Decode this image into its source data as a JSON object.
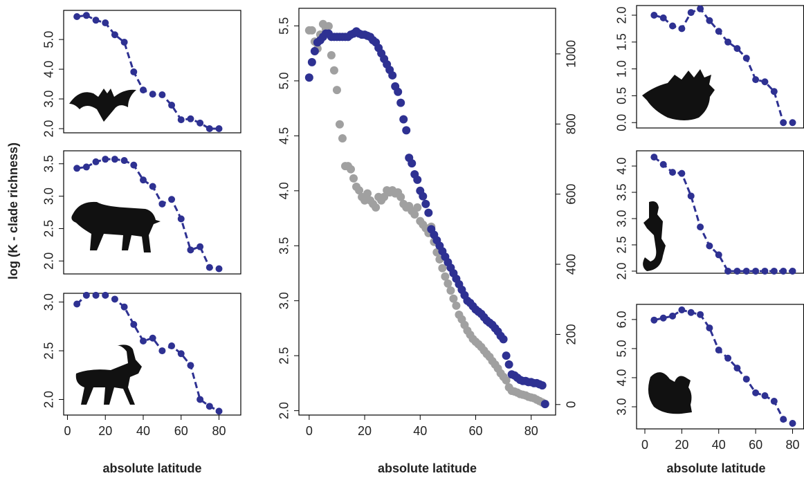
{
  "chart_data": [
    {
      "type": "line",
      "y_label": "log (K - clade richness)",
      "color": "#2e3192",
      "x": [
        5,
        10,
        15,
        20,
        25,
        30,
        35,
        40,
        45,
        50,
        55,
        60,
        65,
        70,
        75,
        80
      ],
      "values": [
        5.77,
        5.81,
        5.65,
        5.56,
        5.16,
        4.91,
        3.91,
        3.3,
        3.16,
        3.14,
        2.79,
        2.3,
        2.33,
        2.19,
        2.0,
        2.0
      ],
      "xlim": [
        -2,
        91.5
      ],
      "ylim": [
        1.86,
        5.98
      ],
      "yticks": [
        {
          "value": 2,
          "label": "2.0"
        },
        {
          "value": 3,
          "label": "3.0"
        },
        {
          "value": 4,
          "label": "4.0"
        },
        {
          "value": 5,
          "label": "5.0"
        }
      ]
    },
    {
      "type": "line",
      "color": "#2e3192",
      "x": [
        5,
        10,
        15,
        20,
        25,
        30,
        35,
        40,
        45,
        50,
        55,
        60,
        65,
        70,
        75,
        80
      ],
      "values": [
        3.43,
        3.45,
        3.53,
        3.57,
        3.57,
        3.55,
        3.48,
        3.25,
        3.15,
        2.88,
        2.95,
        2.65,
        2.17,
        2.22,
        1.9,
        1.88
      ],
      "xlim": [
        -2,
        91.5
      ],
      "ylim": [
        1.8,
        3.7
      ],
      "yticks": [
        {
          "value": 2,
          "label": "2.0"
        },
        2.5,
        {
          "value": 3,
          "label": "3.0"
        },
        3.5
      ]
    },
    {
      "type": "line",
      "color": "#2e3192",
      "x_label": "absolute latitude",
      "x": [
        5,
        10,
        15,
        20,
        25,
        30,
        35,
        40,
        45,
        50,
        55,
        60,
        65,
        70,
        75,
        80
      ],
      "values": [
        2.98,
        3.07,
        3.07,
        3.07,
        3.03,
        2.95,
        2.77,
        2.6,
        2.63,
        2.5,
        2.55,
        2.47,
        2.35,
        2.0,
        1.93,
        1.88
      ],
      "xlim": [
        -2,
        91.5
      ],
      "ylim": [
        1.84,
        3.09
      ],
      "xticks": [
        0,
        20,
        40,
        60,
        80
      ],
      "yticks": [
        {
          "value": 2,
          "label": "2.0"
        },
        2.5,
        {
          "value": 3,
          "label": "3.0"
        }
      ]
    },
    {
      "type": "scatter",
      "x_label": "absolute latitude",
      "x": [
        0,
        1,
        2,
        3,
        4,
        5,
        6,
        7,
        8,
        9,
        10,
        11,
        12,
        13,
        14,
        15,
        16,
        17,
        18,
        19,
        20,
        21,
        22,
        23,
        24,
        25,
        26,
        27,
        28,
        29,
        30,
        31,
        32,
        33,
        34,
        35,
        36,
        37,
        38,
        39,
        40,
        41,
        42,
        43,
        44,
        45,
        46,
        47,
        48,
        49,
        50,
        51,
        52,
        53,
        54,
        55,
        56,
        57,
        58,
        59,
        60,
        61,
        62,
        63,
        64,
        65,
        66,
        67,
        68,
        69,
        70,
        71,
        72,
        73,
        74,
        75,
        76,
        77,
        78,
        79,
        80,
        81,
        82,
        83,
        84,
        85
      ],
      "series": [
        {
          "color": "#a0a0a0",
          "axis": "y2",
          "values": [
            1067,
            1067,
            1035,
            1015,
            1055,
            1085,
            1071,
            1079,
            996,
            953,
            897,
            799,
            759,
            680,
            680,
            671,
            645,
            621,
            611,
            592,
            582,
            602,
            582,
            572,
            562,
            592,
            582,
            592,
            611,
            605,
            611,
            602,
            605,
            592,
            572,
            562,
            566,
            552,
            542,
            562,
            523,
            513,
            503,
            489,
            507,
            464,
            434,
            414,
            389,
            365,
            345,
            325,
            302,
            282,
            256,
            243,
            227,
            211,
            199,
            187,
            179,
            172,
            164,
            154,
            144,
            136,
            124,
            114,
            103,
            89,
            79,
            69,
            49,
            39,
            37,
            34,
            30,
            28,
            26,
            22,
            20,
            18,
            14,
            10,
            6,
            2
          ]
        },
        {
          "color": "#2e3192",
          "values": [
            5.03,
            5.17,
            5.27,
            5.35,
            5.37,
            5.4,
            5.43,
            5.43,
            5.4,
            5.4,
            5.4,
            5.4,
            5.4,
            5.4,
            5.4,
            5.42,
            5.43,
            5.45,
            5.43,
            5.42,
            5.42,
            5.41,
            5.4,
            5.37,
            5.35,
            5.3,
            5.25,
            5.2,
            5.15,
            5.1,
            5.05,
            4.95,
            4.9,
            4.8,
            4.65,
            4.55,
            4.3,
            4.25,
            4.15,
            4.1,
            4.0,
            3.95,
            3.88,
            3.8,
            3.65,
            3.6,
            3.55,
            3.5,
            3.45,
            3.4,
            3.35,
            3.3,
            3.25,
            3.2,
            3.15,
            3.1,
            3.05,
            3.0,
            2.98,
            2.95,
            2.92,
            2.9,
            2.88,
            2.85,
            2.82,
            2.8,
            2.78,
            2.75,
            2.72,
            2.68,
            2.65,
            2.5,
            2.42,
            2.33,
            2.32,
            2.3,
            2.28,
            2.27,
            2.27,
            2.26,
            2.26,
            2.25,
            2.25,
            2.24,
            2.23,
            2.06
          ]
        }
      ],
      "xlim": [
        -3.7,
        88.8
      ],
      "ylim": [
        1.96,
        5.66
      ],
      "y2lim": [
        -30,
        1130
      ],
      "xticks": [
        0,
        20,
        40,
        60,
        80
      ],
      "yticks": [
        {
          "value": 2,
          "label": "2.0"
        },
        2.5,
        {
          "value": 3,
          "label": "3.0"
        },
        3.5,
        {
          "value": 4,
          "label": "4.0"
        },
        4.5,
        {
          "value": 5,
          "label": "5.0"
        },
        5.5
      ],
      "y2ticks": [
        0,
        200,
        400,
        600,
        800,
        1000
      ]
    },
    {
      "type": "line",
      "color": "#2e3192",
      "x": [
        5,
        10,
        15,
        20,
        25,
        30,
        35,
        40,
        45,
        50,
        55,
        60,
        65,
        70,
        75,
        80
      ],
      "values": [
        2.0,
        1.95,
        1.8,
        1.75,
        2.05,
        2.12,
        1.9,
        1.7,
        1.5,
        1.38,
        1.2,
        0.8,
        0.76,
        0.58,
        0,
        0
      ],
      "xlim": [
        -4.5,
        86
      ],
      "ylim": [
        -0.1,
        2.18
      ],
      "yticks": [
        {
          "value": 0,
          "label": "0.0"
        },
        0.5,
        {
          "value": 1,
          "label": "1.0"
        },
        1.5,
        {
          "value": 2,
          "label": "2.0"
        }
      ]
    },
    {
      "type": "line",
      "color": "#2e3192",
      "x": [
        5,
        10,
        15,
        20,
        25,
        30,
        35,
        40,
        45,
        50,
        55,
        60,
        65,
        70,
        75,
        80
      ],
      "values": [
        4.17,
        4.03,
        3.88,
        3.86,
        3.43,
        2.84,
        2.48,
        2.31,
        2.0,
        2.0,
        2.0,
        2.0,
        2.0,
        2.0,
        2.0,
        2.0
      ],
      "xlim": [
        -4.5,
        86
      ],
      "ylim": [
        1.96,
        4.29
      ],
      "yticks": [
        {
          "value": 2,
          "label": "2.0"
        },
        2.5,
        {
          "value": 3,
          "label": "3.0"
        },
        3.5,
        {
          "value": 4,
          "label": "4.0"
        }
      ]
    },
    {
      "type": "line",
      "color": "#2e3192",
      "x_label": "absolute latitude",
      "x": [
        5,
        10,
        15,
        20,
        25,
        30,
        35,
        40,
        45,
        50,
        55,
        60,
        65,
        70,
        75,
        80
      ],
      "values": [
        5.98,
        6.05,
        6.12,
        6.33,
        6.24,
        6.17,
        5.71,
        4.95,
        4.67,
        4.33,
        3.95,
        3.48,
        3.38,
        3.19,
        2.57,
        2.43
      ],
      "xlim": [
        -4.5,
        86
      ],
      "ylim": [
        2.24,
        6.52
      ],
      "xticks": [
        0,
        20,
        40,
        60,
        80
      ],
      "yticks": [
        {
          "value": 3,
          "label": "3.0"
        },
        {
          "value": 4,
          "label": "4.0"
        },
        {
          "value": 5,
          "label": "5.0"
        },
        {
          "value": 6,
          "label": "6.0"
        }
      ]
    }
  ]
}
